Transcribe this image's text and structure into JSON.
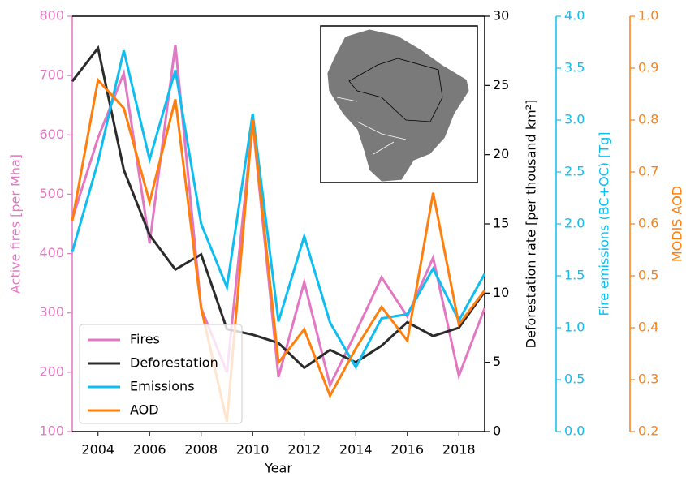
{
  "chart_data": {
    "type": "line",
    "x_label": "Year",
    "y_label": "Active fires [per Mha]",
    "y2_label": "Deforestation rate [per thousand km²]",
    "y3_label": "Fire emissions (BC+OC) [Tg]",
    "y4_label": "MODIS AOD",
    "x": [
      2003,
      2004,
      2005,
      2006,
      2007,
      2008,
      2009,
      2010,
      2011,
      2012,
      2013,
      2014,
      2015,
      2016,
      2017,
      2018,
      2019
    ],
    "xlim": [
      2003,
      2019
    ],
    "xticks": [
      2004,
      2006,
      2008,
      2010,
      2012,
      2014,
      2016,
      2018
    ],
    "ylim": [
      100,
      800
    ],
    "yticks": [
      100,
      200,
      300,
      400,
      500,
      600,
      700,
      800
    ],
    "y2lim": [
      0,
      30
    ],
    "y2ticks": [
      0,
      5,
      10,
      15,
      20,
      25,
      30
    ],
    "y3lim": [
      0,
      4
    ],
    "y3ticks": [
      {
        "value": 0,
        "label": "0.0"
      },
      0.5,
      {
        "value": 1,
        "label": "1.0"
      },
      1.5,
      {
        "value": 2,
        "label": "2.0"
      },
      2.5,
      {
        "value": 3,
        "label": "3.0"
      },
      3.5,
      {
        "value": 4,
        "label": "4.0"
      }
    ],
    "y4lim": [
      0.2,
      1.0
    ],
    "y4ticks": [
      0.2,
      0.3,
      0.4,
      0.5,
      0.6,
      0.7,
      0.8,
      0.9,
      {
        "value": 1,
        "label": "1.0"
      }
    ],
    "legend": "lower left",
    "series": [
      {
        "name": "Fires",
        "color": "#e377c2",
        "axis": "y",
        "values": [
          458,
          595,
          704,
          417,
          752,
          308,
          200,
          622,
          192,
          352,
          178,
          267,
          360,
          294,
          393,
          194,
          308
        ]
      },
      {
        "name": "Deforestation",
        "color": "#2b2b2b",
        "axis": "y2",
        "values": [
          25.3,
          27.7,
          18.9,
          14.2,
          11.7,
          12.8,
          7.4,
          7.0,
          6.4,
          4.6,
          5.9,
          5.0,
          6.2,
          7.9,
          6.9,
          7.5,
          10.1
        ]
      },
      {
        "name": "Emissions",
        "color": "#0fbef0",
        "axis": "y3",
        "values": [
          1.73,
          2.6,
          3.67,
          2.62,
          3.48,
          2.0,
          1.39,
          3.06,
          1.06,
          1.88,
          1.05,
          0.62,
          1.09,
          1.13,
          1.57,
          1.07,
          1.52
        ]
      },
      {
        "name": "AOD",
        "color": "#ff7f0e",
        "axis": "y4",
        "values": [
          0.606,
          0.877,
          0.823,
          0.642,
          0.84,
          0.438,
          0.219,
          0.8,
          0.333,
          0.397,
          0.269,
          0.36,
          0.44,
          0.375,
          0.66,
          0.406,
          0.472
        ]
      }
    ]
  }
}
